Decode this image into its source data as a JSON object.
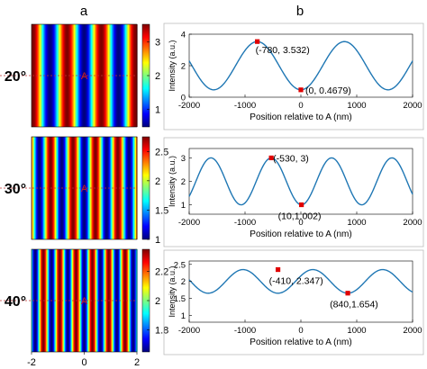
{
  "panel_labels": [
    "a",
    "b"
  ],
  "colormap": [
    "#00007f",
    "#0000ff",
    "#007fff",
    "#00ffff",
    "#7fff7f",
    "#ffff00",
    "#ff7f00",
    "#ff0000",
    "#7f0000"
  ],
  "marker_color": "#e00000",
  "curve_color": "#1f77b4",
  "chart_data": [
    {
      "type": "heatmap",
      "row_label": "20°",
      "point_label": "A",
      "period": 1.3,
      "phase": 0.0,
      "xlim": [
        -2,
        2
      ],
      "clim": [
        0.47,
        3.53
      ],
      "colorbar_ticks": [
        "1",
        "2",
        "3"
      ],
      "colorbar_values": [
        1,
        2,
        3
      ]
    },
    {
      "type": "heatmap",
      "row_label": "30°",
      "point_label": "A",
      "period": 0.85,
      "phase": 0.0,
      "xlim": [
        -2,
        2
      ],
      "clim": [
        1.0,
        2.75
      ],
      "colorbar_ticks": [
        "1",
        "1.5",
        "2",
        "2.5"
      ],
      "colorbar_values": [
        1,
        1.5,
        2,
        2.5
      ]
    },
    {
      "type": "heatmap",
      "row_label": "40°",
      "point_label": "A",
      "period": 0.62,
      "phase": 0.0,
      "xlim": [
        -2,
        2
      ],
      "clim": [
        1.65,
        2.35
      ],
      "colorbar_ticks": [
        "1.8",
        "2",
        "2.2"
      ],
      "colorbar_values": [
        1.8,
        2,
        2.2
      ],
      "xticks": [
        "-2",
        "0",
        "2"
      ],
      "xtick_values": [
        -2,
        0,
        2
      ]
    },
    {
      "type": "line",
      "xlabel": "Position relative to A (nm)",
      "ylabel": "Intensity (a.u.)",
      "xlim": [
        -2000,
        2000
      ],
      "ylim": [
        0,
        4
      ],
      "xticks": [
        "-2000",
        "-1000",
        "0",
        "1000",
        "2000"
      ],
      "xtick_values": [
        -2000,
        -1000,
        0,
        1000,
        2000
      ],
      "yticks": [
        "0",
        "2",
        "4"
      ],
      "ytick_values": [
        0,
        2,
        4
      ],
      "mean": 2.0,
      "amplitude": 1.53,
      "period": 1560,
      "minimum_at": 0,
      "points": [
        {
          "x": -780,
          "y": 3.532,
          "label": "(-780, 3.532)"
        },
        {
          "x": 0,
          "y": 0.4679,
          "label": "(0, 0.4679)"
        }
      ]
    },
    {
      "type": "line",
      "xlabel": "Position relative to A (nm)",
      "ylabel": "Intensity (a.u.)",
      "xlim": [
        -2000,
        2000
      ],
      "ylim": [
        0.6,
        3.4
      ],
      "xticks": [
        "-2000",
        "-1000",
        "0",
        "1000",
        "2000"
      ],
      "xtick_values": [
        -2000,
        -1000,
        0,
        1000,
        2000
      ],
      "yticks": [
        "1",
        "2",
        "3"
      ],
      "ytick_values": [
        1,
        2,
        3
      ],
      "mean": 2.0,
      "amplitude": 1.0,
      "period": 1080,
      "minimum_at": 10,
      "points": [
        {
          "x": -530,
          "y": 3,
          "label": "(-530, 3)"
        },
        {
          "x": 10,
          "y": 1.002,
          "label": "(10,1.002)"
        }
      ]
    },
    {
      "type": "line",
      "xlabel": "Position relative to A (nm)",
      "ylabel": "Intensity (a.u.)",
      "xlim": [
        -2000,
        2000
      ],
      "ylim": [
        0.8,
        2.6
      ],
      "xticks": [
        "-2000",
        "-1000",
        "0",
        "1000",
        "2000"
      ],
      "xtick_values": [
        -2000,
        -1000,
        0,
        1000,
        2000
      ],
      "yticks": [
        "1",
        "1.5",
        "2",
        "2.5"
      ],
      "ytick_values": [
        1,
        1.5,
        2,
        2.5
      ],
      "mean": 2.0,
      "amplitude": 0.347,
      "period": 1250,
      "minimum_at": 840,
      "points": [
        {
          "x": -410,
          "y": 2.347,
          "label": "(-410, 2.347)"
        },
        {
          "x": 840,
          "y": 1.654,
          "label": "(840,1.654)"
        }
      ]
    }
  ]
}
